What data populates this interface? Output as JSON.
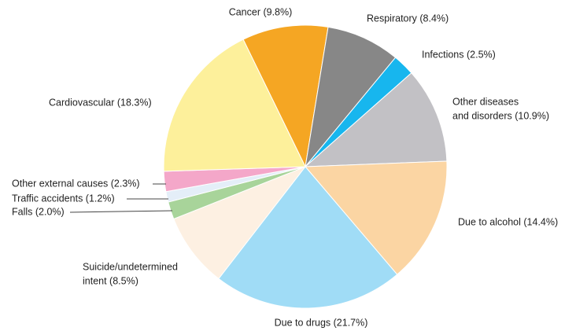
{
  "chart_data": {
    "type": "pie",
    "categories": [
      [
        "Cancer (9.8%)"
      ],
      [
        "Respiratory (8.4%)"
      ],
      [
        "Infections (2.5%)"
      ],
      [
        "Other diseases",
        "and disorders (10.9%)"
      ],
      [
        "Due to alcohol (14.4%)"
      ],
      [
        "Due to drugs (21.7%)"
      ],
      [
        "Suicide/undetermined",
        "intent (8.5%)"
      ],
      [
        "Falls (2.0%)"
      ],
      [
        "Traffic accidents (1.2%)"
      ],
      [
        "Other external causes (2.3%)"
      ],
      [
        "Cardiovascular (18.3%)"
      ]
    ],
    "values": [
      9.8,
      8.4,
      2.5,
      10.9,
      14.4,
      21.7,
      8.5,
      2.0,
      1.2,
      2.3,
      18.3
    ],
    "colors": [
      "#f5a623",
      "#878787",
      "#17b6ee",
      "#c2c1c5",
      "#fbd5a3",
      "#a0dcf6",
      "#fdf0e2",
      "#a8d49a",
      "#e4eef8",
      "#f4a7c9",
      "#fdf09b"
    ]
  }
}
